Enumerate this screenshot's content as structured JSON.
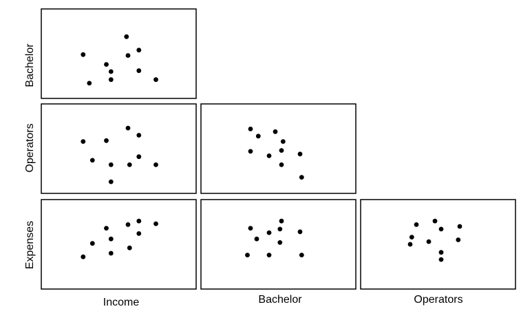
{
  "chart_data": {
    "type": "scatter",
    "layout": "lower-triangular scatterplot matrix",
    "variables": [
      "Income",
      "Bachelor",
      "Operators",
      "Expenses"
    ],
    "x_axis_labels": [
      "Income",
      "Bachelor",
      "Operators"
    ],
    "y_axis_labels": [
      "Bachelor",
      "Operators",
      "Expenses"
    ],
    "point_color": "#000000",
    "grid": false,
    "panels": [
      {
        "x_var": "Income",
        "y_var": "Bachelor",
        "xlim": [
          0,
          10
        ],
        "ylim": [
          0,
          10
        ],
        "points": [
          [
            2.7,
            4.9
          ],
          [
            3.1,
            1.7
          ],
          [
            4.2,
            3.8
          ],
          [
            4.5,
            3.0
          ],
          [
            4.5,
            2.1
          ],
          [
            5.5,
            6.9
          ],
          [
            5.6,
            4.8
          ],
          [
            6.3,
            5.4
          ],
          [
            6.3,
            3.1
          ],
          [
            7.4,
            2.1
          ]
        ]
      },
      {
        "x_var": "Income",
        "y_var": "Operators",
        "xlim": [
          0,
          10
        ],
        "ylim": [
          0,
          10
        ],
        "points": [
          [
            2.7,
            5.8
          ],
          [
            3.3,
            3.7
          ],
          [
            4.2,
            5.9
          ],
          [
            4.5,
            3.2
          ],
          [
            4.5,
            1.3
          ],
          [
            5.6,
            7.3
          ],
          [
            5.7,
            3.2
          ],
          [
            6.3,
            6.5
          ],
          [
            6.3,
            4.1
          ],
          [
            7.4,
            3.2
          ]
        ]
      },
      {
        "x_var": "Bachelor",
        "y_var": "Operators",
        "xlim": [
          0,
          10
        ],
        "ylim": [
          0,
          10
        ],
        "points": [
          [
            3.2,
            7.2
          ],
          [
            3.7,
            6.4
          ],
          [
            3.2,
            4.7
          ],
          [
            4.4,
            4.2
          ],
          [
            4.8,
            6.9
          ],
          [
            5.3,
            5.8
          ],
          [
            5.2,
            4.8
          ],
          [
            5.2,
            3.2
          ],
          [
            6.4,
            4.4
          ],
          [
            6.5,
            1.8
          ]
        ]
      },
      {
        "x_var": "Income",
        "y_var": "Expenses",
        "xlim": [
          0,
          10
        ],
        "ylim": [
          0,
          10
        ],
        "points": [
          [
            2.7,
            3.6
          ],
          [
            3.3,
            5.1
          ],
          [
            4.2,
            6.8
          ],
          [
            4.5,
            5.6
          ],
          [
            4.5,
            4.0
          ],
          [
            5.6,
            7.2
          ],
          [
            5.7,
            4.6
          ],
          [
            6.3,
            7.6
          ],
          [
            6.3,
            6.2
          ],
          [
            7.4,
            7.3
          ]
        ]
      },
      {
        "x_var": "Bachelor",
        "y_var": "Expenses",
        "xlim": [
          0,
          10
        ],
        "ylim": [
          0,
          10
        ],
        "points": [
          [
            3.2,
            6.8
          ],
          [
            3.6,
            5.6
          ],
          [
            4.4,
            6.3
          ],
          [
            5.2,
            7.6
          ],
          [
            5.1,
            6.7
          ],
          [
            5.1,
            5.2
          ],
          [
            6.4,
            6.4
          ],
          [
            3.0,
            3.8
          ],
          [
            4.4,
            3.8
          ],
          [
            6.5,
            3.8
          ]
        ]
      },
      {
        "x_var": "Operators",
        "y_var": "Expenses",
        "xlim": [
          0,
          10
        ],
        "ylim": [
          0,
          10
        ],
        "points": [
          [
            3.3,
            5.8
          ],
          [
            3.2,
            5.0
          ],
          [
            3.6,
            7.2
          ],
          [
            4.4,
            5.3
          ],
          [
            4.8,
            7.6
          ],
          [
            5.2,
            6.7
          ],
          [
            5.2,
            4.1
          ],
          [
            5.2,
            3.3
          ],
          [
            6.3,
            5.5
          ],
          [
            6.4,
            7.0
          ]
        ]
      }
    ]
  }
}
